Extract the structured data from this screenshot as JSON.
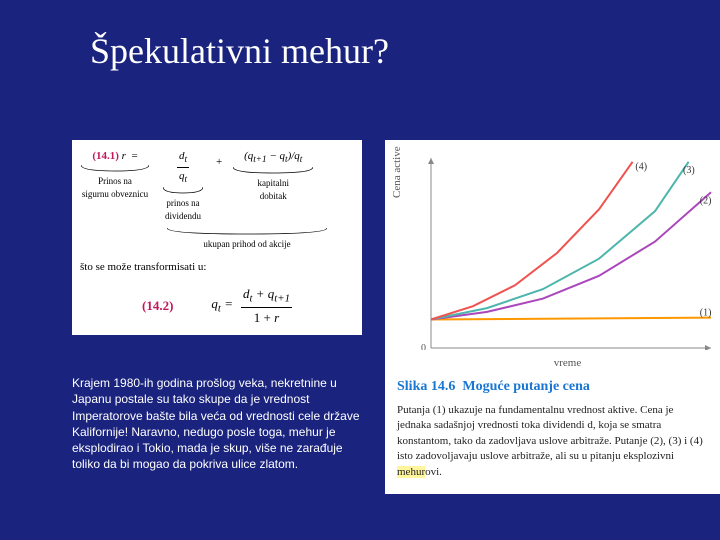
{
  "title": "Špekulativni mehur?",
  "equation1": {
    "num": "(14.1)",
    "lhs": "r",
    "term1_num": "d<sub>t</sub>/q<sub>t</sub>",
    "term1_frac_num": "d_t",
    "term1_frac_den": "q_t",
    "plus": "+",
    "term2": "(q_{t+1} − q_t)/q_t",
    "label_lhs": "Prinos na\nsigurnu obveznicu",
    "label_mid": "prinos na\ndividendu",
    "label_rhs": "kapitalni\ndobitak",
    "brace_label": "ukupan prihod od akcije",
    "transform": "što se može transformisati u:"
  },
  "equation2": {
    "num": "(14.2)",
    "lhs": "q_t =",
    "frac_num": "d_t + q_{t+1}",
    "frac_den": "1 + r"
  },
  "body": "Krajem 1980-ih godina prošlog veka, nekretnine u Japanu postale su tako skupe da je vrednost Imperatorove bašte bila veća od vrednosti cele države Kalifornije! Naravno, nedugo posle toga, mehur je eksplodirao i Tokio, mada je skup, više ne zarađuje toliko da bi mogao da pokriva ulice zlatom.",
  "chart": {
    "ylabel": "Cena active",
    "xlabel": "vreme",
    "xlim": [
      0,
      10
    ],
    "ylim": [
      0,
      10
    ],
    "background_color": "#ffffff",
    "axis_color": "#888888",
    "grid": false,
    "origin_label": "0",
    "lines": [
      {
        "id": "1",
        "color": "#ff9800",
        "width": 2,
        "points": [
          [
            0,
            1.5
          ],
          [
            10,
            1.6
          ]
        ],
        "label_x": 9.6,
        "label_y": 1.7
      },
      {
        "id": "2",
        "color": "#ab47bc",
        "width": 2,
        "points": [
          [
            0,
            1.5
          ],
          [
            2,
            1.9
          ],
          [
            4,
            2.6
          ],
          [
            6,
            3.8
          ],
          [
            8,
            5.6
          ],
          [
            10,
            8.2
          ]
        ],
        "label_x": 9.6,
        "label_y": 7.6
      },
      {
        "id": "3",
        "color": "#4db6ac",
        "width": 2,
        "points": [
          [
            0,
            1.5
          ],
          [
            2,
            2.1
          ],
          [
            4,
            3.1
          ],
          [
            6,
            4.7
          ],
          [
            8,
            7.2
          ],
          [
            9.2,
            9.8
          ]
        ],
        "label_x": 9.0,
        "label_y": 9.2
      },
      {
        "id": "4",
        "color": "#ef5350",
        "width": 2,
        "points": [
          [
            0,
            1.5
          ],
          [
            1.5,
            2.2
          ],
          [
            3,
            3.3
          ],
          [
            4.5,
            5.0
          ],
          [
            6,
            7.3
          ],
          [
            7.2,
            9.8
          ]
        ],
        "label_x": 7.3,
        "label_y": 9.4
      }
    ]
  },
  "figure": {
    "title_prefix": "Slika 14.6",
    "title": "Moguće putanje cena",
    "caption_before_hl": "Putanja (1) ukazuje na fundamentalnu vrednost aktive. Cena je jednaka sadašnjoj vrednosti toka dividendi d, koja se smatra konstantom, tako da zadovljava uslove arbitraže. Putanje (2), (3) i (4) isto zadovoljavaju uslove arbitraže, ali su u pitanju eksplozivni ",
    "highlight": "mehur",
    "caption_after_hl": "ovi."
  }
}
